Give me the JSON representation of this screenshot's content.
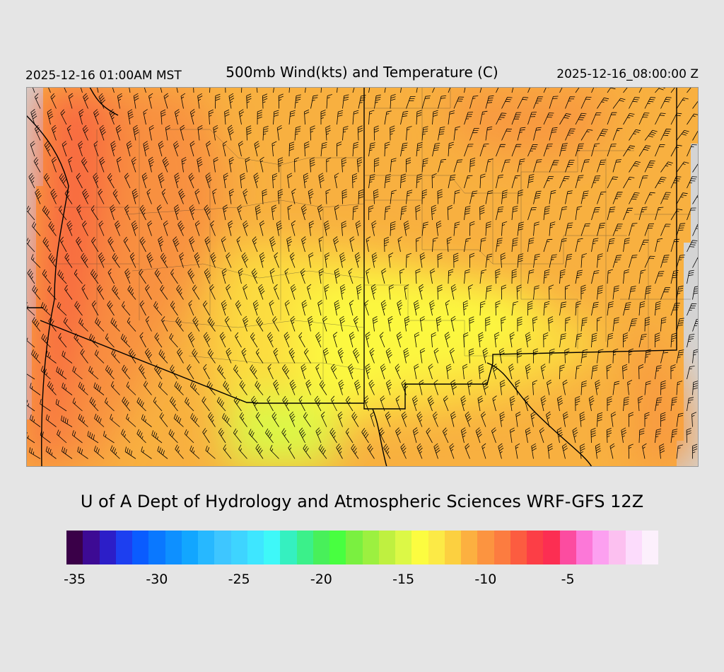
{
  "header": {
    "left_time": "2025-12-16 01:00AM MST",
    "title": "500mb Wind(kts) and Temperature (C)",
    "right_time": "2025-12-16_08:00:00 Z"
  },
  "footer": {
    "credit": "U of A Dept of Hydrology and Atmospheric Sciences WRF-GFS 12Z"
  },
  "colorbar": {
    "colors": [
      "#3a0048",
      "#3d0a94",
      "#2c1ec8",
      "#1d3ff0",
      "#0a5cff",
      "#0a78ff",
      "#0e90ff",
      "#12a6ff",
      "#27b8ff",
      "#3ec6ff",
      "#3ed4ff",
      "#3ee6ff",
      "#3ef8f8",
      "#35f0c0",
      "#3bf08a",
      "#48f05a",
      "#48ff40",
      "#7af040",
      "#9cf040",
      "#bff040",
      "#dcf846",
      "#fcfc40",
      "#fcea46",
      "#fcd040",
      "#fcb040",
      "#fc9440",
      "#fc7c40",
      "#fc5c40",
      "#fc3e46",
      "#fc2e52",
      "#fc4ca0",
      "#fc78d8",
      "#fca0f0",
      "#fcc0f0",
      "#fcdcfc",
      "#fcf0fc"
    ],
    "labels": [
      "-35",
      "-30",
      "-25",
      "-20",
      "-15",
      "-10",
      "-5"
    ]
  },
  "map": {
    "field": "500mb temperature (C) with wind barbs (kts)",
    "region": "US Southwest / Four Corners",
    "colors": {
      "coldest_coast": "#f86c40",
      "cold": "#f89040",
      "mid": "#f8b040",
      "warm": "#fcd840",
      "warmest": "#fcf840",
      "max_pocket": "#dcf846",
      "missing": "#d4d4d4"
    }
  }
}
